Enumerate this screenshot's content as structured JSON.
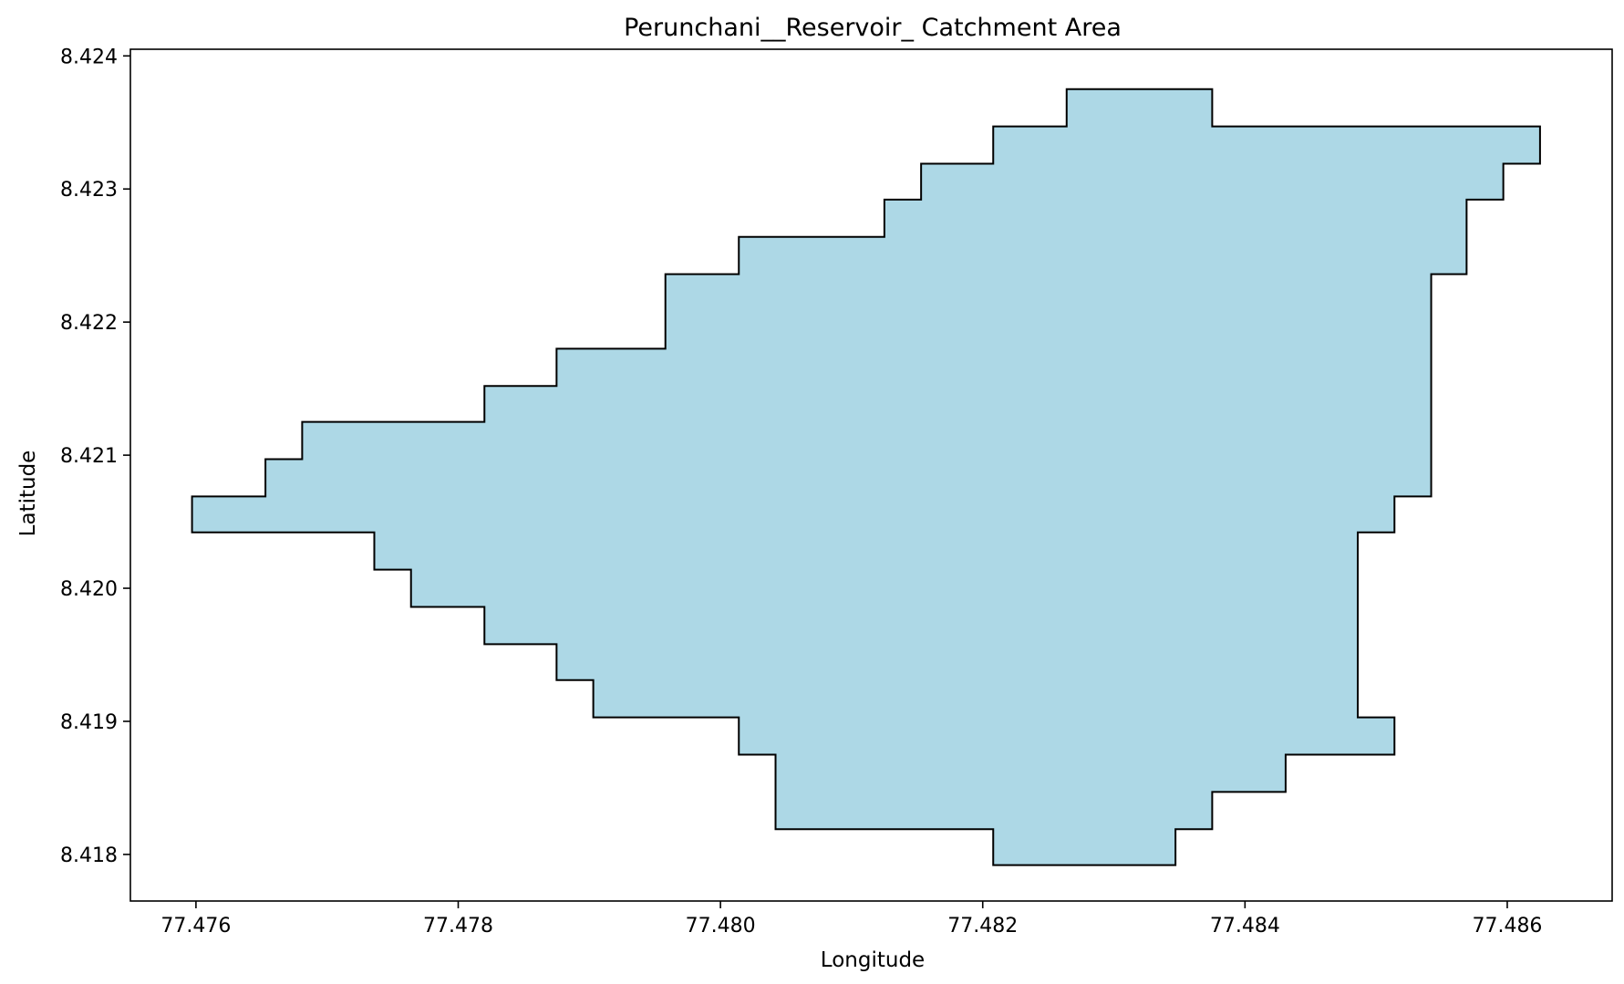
{
  "chart_data": {
    "type": "area",
    "title": "Perunchani__Reservoir_ Catchment Area",
    "xlabel": "Longitude",
    "ylabel": "Latitude",
    "xlim": [
      77.4755,
      77.4868
    ],
    "ylim": [
      8.41765,
      8.42405
    ],
    "xticks": [
      "77.476",
      "77.478",
      "77.480",
      "77.482",
      "77.484",
      "77.486"
    ],
    "yticks": [
      "8.418",
      "8.419",
      "8.420",
      "8.421",
      "8.422",
      "8.423",
      "8.424"
    ],
    "grid": false,
    "legend": "none",
    "fill_color": "#add8e6",
    "edge_color": "#000000",
    "series": [
      {
        "polygon": [
          [
            77.47597,
            8.42069
          ],
          [
            77.47653,
            8.42069
          ],
          [
            77.47653,
            8.42097
          ],
          [
            77.47681,
            8.42097
          ],
          [
            77.47681,
            8.42125
          ],
          [
            77.4782,
            8.42125
          ],
          [
            77.4782,
            8.42152
          ],
          [
            77.47875,
            8.42152
          ],
          [
            77.47875,
            8.4218
          ],
          [
            77.47958,
            8.4218
          ],
          [
            77.47958,
            8.42236
          ],
          [
            77.48014,
            8.42236
          ],
          [
            77.48014,
            8.42264
          ],
          [
            77.48125,
            8.42264
          ],
          [
            77.48125,
            8.42292
          ],
          [
            77.48153,
            8.42292
          ],
          [
            77.48153,
            8.42319
          ],
          [
            77.48208,
            8.42319
          ],
          [
            77.48208,
            8.42347
          ],
          [
            77.48264,
            8.42347
          ],
          [
            77.48264,
            8.42375
          ],
          [
            77.48375,
            8.42375
          ],
          [
            77.48375,
            8.42347
          ],
          [
            77.48625,
            8.42347
          ],
          [
            77.48625,
            8.42319
          ],
          [
            77.48597,
            8.42319
          ],
          [
            77.48597,
            8.42292
          ],
          [
            77.48569,
            8.42292
          ],
          [
            77.48569,
            8.42236
          ],
          [
            77.48542,
            8.42236
          ],
          [
            77.48542,
            8.42069
          ],
          [
            77.48514,
            8.42069
          ],
          [
            77.48514,
            8.42042
          ],
          [
            77.48486,
            8.42042
          ],
          [
            77.48486,
            8.41903
          ],
          [
            77.48514,
            8.41903
          ],
          [
            77.48514,
            8.41875
          ],
          [
            77.48431,
            8.41875
          ],
          [
            77.48431,
            8.41847
          ],
          [
            77.48375,
            8.41847
          ],
          [
            77.48375,
            8.41819
          ],
          [
            77.48347,
            8.41819
          ],
          [
            77.48347,
            8.41792
          ],
          [
            77.48208,
            8.41792
          ],
          [
            77.48208,
            8.41819
          ],
          [
            77.48042,
            8.41819
          ],
          [
            77.48042,
            8.41875
          ],
          [
            77.48014,
            8.41875
          ],
          [
            77.48014,
            8.41903
          ],
          [
            77.47903,
            8.41903
          ],
          [
            77.47903,
            8.41931
          ],
          [
            77.47875,
            8.41931
          ],
          [
            77.47875,
            8.41958
          ],
          [
            77.4782,
            8.41958
          ],
          [
            77.4782,
            8.41986
          ],
          [
            77.47764,
            8.41986
          ],
          [
            77.47764,
            8.42014
          ],
          [
            77.47736,
            8.42014
          ],
          [
            77.47736,
            8.42042
          ],
          [
            77.47597,
            8.42042
          ]
        ]
      }
    ]
  }
}
